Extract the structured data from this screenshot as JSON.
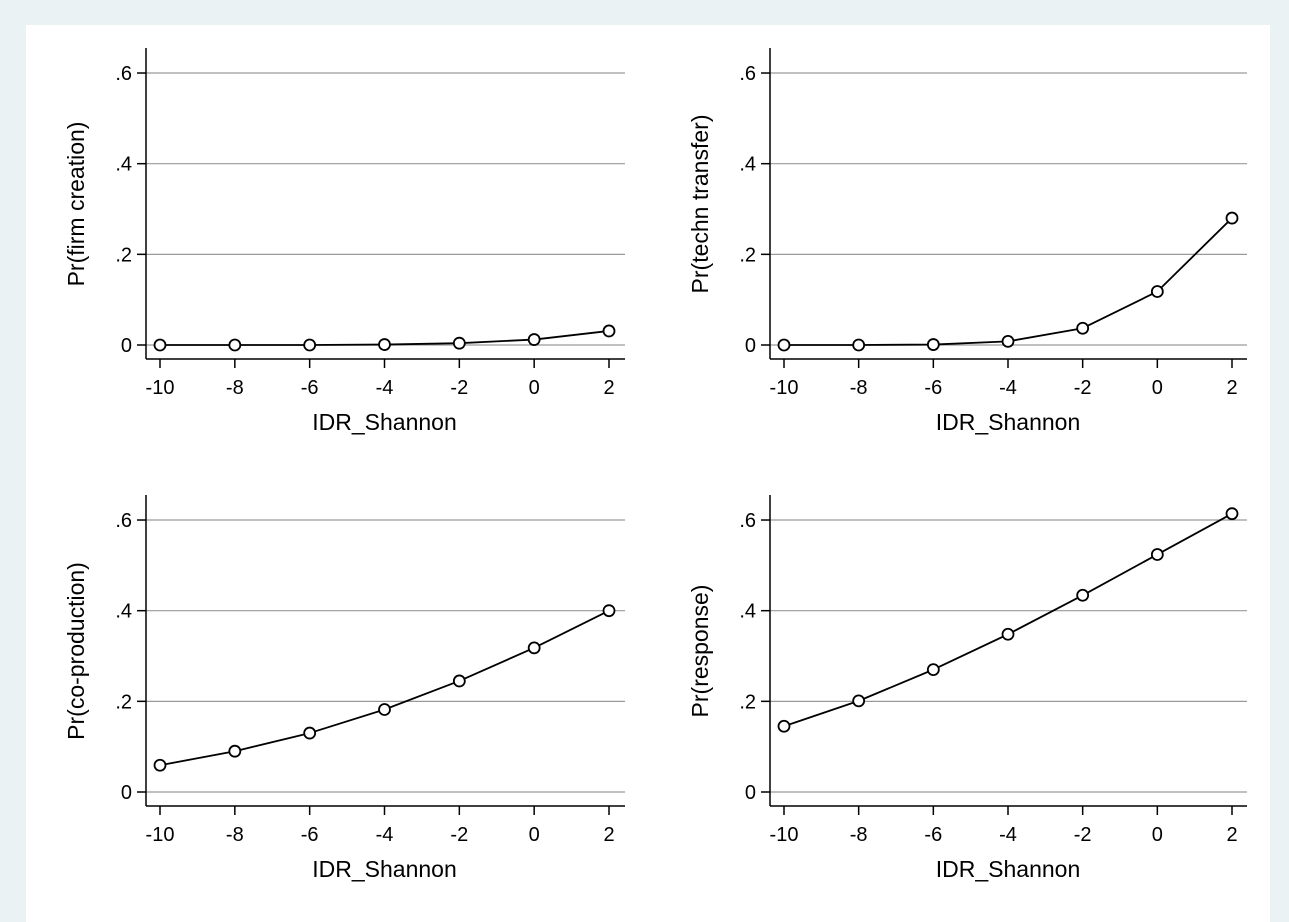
{
  "colors": {
    "outer_background": "#eaf2f3",
    "panel_background": "#ffffff",
    "gridline": "#9a9a9a",
    "axis": "#000000",
    "series_line": "#000000",
    "marker": "#000000"
  },
  "chart_data": [
    {
      "type": "line",
      "title": "",
      "xlabel": "IDR_Shannon",
      "ylabel": "Pr(firm creation)",
      "x": [
        -10,
        -8,
        -6,
        -4,
        -2,
        0,
        2
      ],
      "values": [
        0.0,
        0.0,
        0.0,
        0.001,
        0.004,
        0.012,
        0.031
      ],
      "xlim": [
        -10,
        2
      ],
      "ylim": [
        0,
        0.6
      ],
      "xticks": [
        -10,
        -8,
        -6,
        -4,
        -2,
        0,
        2
      ],
      "xtick_labels": [
        "-10",
        "-8",
        "-6",
        "-4",
        "-2",
        "0",
        "2"
      ],
      "yticks": [
        0,
        0.2,
        0.4,
        0.6
      ],
      "ytick_labels": [
        "0",
        ".2",
        ".4",
        ".6"
      ],
      "grid": "horizontal",
      "marker": "hollow-circle",
      "legend": "none"
    },
    {
      "type": "line",
      "title": "",
      "xlabel": "IDR_Shannon",
      "ylabel": "Pr(techn transfer)",
      "x": [
        -10,
        -8,
        -6,
        -4,
        -2,
        0,
        2
      ],
      "values": [
        0.0,
        0.0,
        0.001,
        0.008,
        0.037,
        0.118,
        0.28
      ],
      "xlim": [
        -10,
        2
      ],
      "ylim": [
        0,
        0.6
      ],
      "xticks": [
        -10,
        -8,
        -6,
        -4,
        -2,
        0,
        2
      ],
      "xtick_labels": [
        "-10",
        "-8",
        "-6",
        "-4",
        "-2",
        "0",
        "2"
      ],
      "yticks": [
        0,
        0.2,
        0.4,
        0.6
      ],
      "ytick_labels": [
        "0",
        ".2",
        ".4",
        ".6"
      ],
      "grid": "horizontal",
      "marker": "hollow-circle",
      "legend": "none"
    },
    {
      "type": "line",
      "title": "",
      "xlabel": "IDR_Shannon",
      "ylabel": "Pr(co-production)",
      "x": [
        -10,
        -8,
        -6,
        -4,
        -2,
        0,
        2
      ],
      "values": [
        0.059,
        0.09,
        0.13,
        0.182,
        0.245,
        0.318,
        0.4
      ],
      "xlim": [
        -10,
        2
      ],
      "ylim": [
        0,
        0.6
      ],
      "xticks": [
        -10,
        -8,
        -6,
        -4,
        -2,
        0,
        2
      ],
      "xtick_labels": [
        "-10",
        "-8",
        "-6",
        "-4",
        "-2",
        "0",
        "2"
      ],
      "yticks": [
        0,
        0.2,
        0.4,
        0.6
      ],
      "ytick_labels": [
        "0",
        ".2",
        ".4",
        ".6"
      ],
      "grid": "horizontal",
      "marker": "hollow-circle",
      "legend": "none"
    },
    {
      "type": "line",
      "title": "",
      "xlabel": "IDR_Shannon",
      "ylabel": "Pr(response)",
      "x": [
        -10,
        -8,
        -6,
        -4,
        -2,
        0,
        2
      ],
      "values": [
        0.145,
        0.201,
        0.27,
        0.348,
        0.434,
        0.524,
        0.614
      ],
      "xlim": [
        -10,
        2
      ],
      "ylim": [
        0,
        0.6
      ],
      "xticks": [
        -10,
        -8,
        -6,
        -4,
        -2,
        0,
        2
      ],
      "xtick_labels": [
        "-10",
        "-8",
        "-6",
        "-4",
        "-2",
        "0",
        "2"
      ],
      "yticks": [
        0,
        0.2,
        0.4,
        0.6
      ],
      "ytick_labels": [
        "0",
        ".2",
        ".4",
        ".6"
      ],
      "grid": "horizontal",
      "marker": "hollow-circle",
      "legend": "none"
    }
  ]
}
